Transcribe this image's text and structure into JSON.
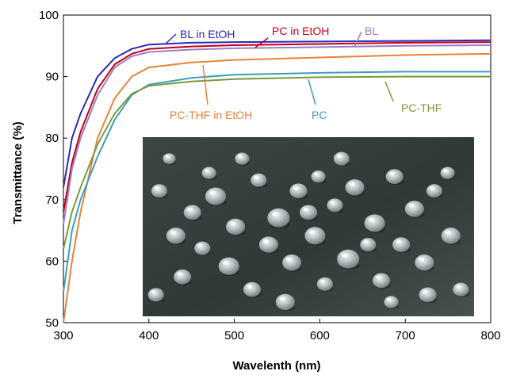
{
  "chart_data": {
    "type": "line",
    "title": "",
    "xlabel": "Wavelenth (nm)",
    "ylabel": "Transmittance (%)",
    "xlim": [
      300,
      800
    ],
    "ylim": [
      50,
      100
    ],
    "xticks": [
      300,
      400,
      500,
      600,
      700,
      800
    ],
    "yticks": [
      50,
      60,
      70,
      80,
      90,
      100
    ],
    "grid": false,
    "legend": "inline labels with leader lines",
    "inset": "photo of transparent plastic pellets",
    "series": [
      {
        "name": "BL in EtOH",
        "color": "#2a2ab8",
        "x": [
          300,
          310,
          320,
          340,
          360,
          380,
          400,
          450,
          500,
          600,
          700,
          800
        ],
        "y": [
          72,
          80,
          84,
          90,
          93,
          94.5,
          95.2,
          95.5,
          95.6,
          95.7,
          95.8,
          95.9
        ]
      },
      {
        "name": "PC in EtOH",
        "color": "#c0001a",
        "x": [
          300,
          310,
          320,
          340,
          360,
          380,
          400,
          450,
          500,
          600,
          700,
          800
        ],
        "y": [
          68,
          76,
          81,
          88,
          92,
          93.7,
          94.5,
          94.9,
          95.1,
          95.3,
          95.5,
          95.6
        ]
      },
      {
        "name": "BL",
        "color": "#9a7fc4",
        "x": [
          300,
          310,
          320,
          340,
          360,
          380,
          400,
          450,
          500,
          600,
          700,
          800
        ],
        "y": [
          66,
          75,
          80,
          87,
          91.5,
          93.3,
          94,
          94.4,
          94.6,
          94.8,
          95,
          95.1
        ]
      },
      {
        "name": "PC-THF in EtOH",
        "color": "#e8823a",
        "x": [
          300,
          310,
          320,
          340,
          360,
          380,
          400,
          450,
          500,
          600,
          700,
          800
        ],
        "y": [
          50,
          60,
          68,
          80,
          86.5,
          90,
          91.5,
          92.3,
          92.7,
          93.1,
          93.5,
          93.7
        ]
      },
      {
        "name": "PC",
        "color": "#3a9fbf",
        "x": [
          300,
          310,
          320,
          340,
          360,
          380,
          400,
          450,
          500,
          600,
          700,
          800
        ],
        "y": [
          55,
          65,
          70,
          77,
          83,
          87,
          88.7,
          89.8,
          90.3,
          90.6,
          90.8,
          90.8
        ]
      },
      {
        "name": "PC-THF",
        "color": "#7a9a3a",
        "x": [
          300,
          310,
          320,
          340,
          360,
          380,
          400,
          450,
          500,
          600,
          700,
          800
        ],
        "y": [
          62,
          68,
          72,
          79,
          84,
          87.2,
          88.5,
          89.2,
          89.6,
          89.9,
          90,
          90
        ]
      }
    ]
  }
}
